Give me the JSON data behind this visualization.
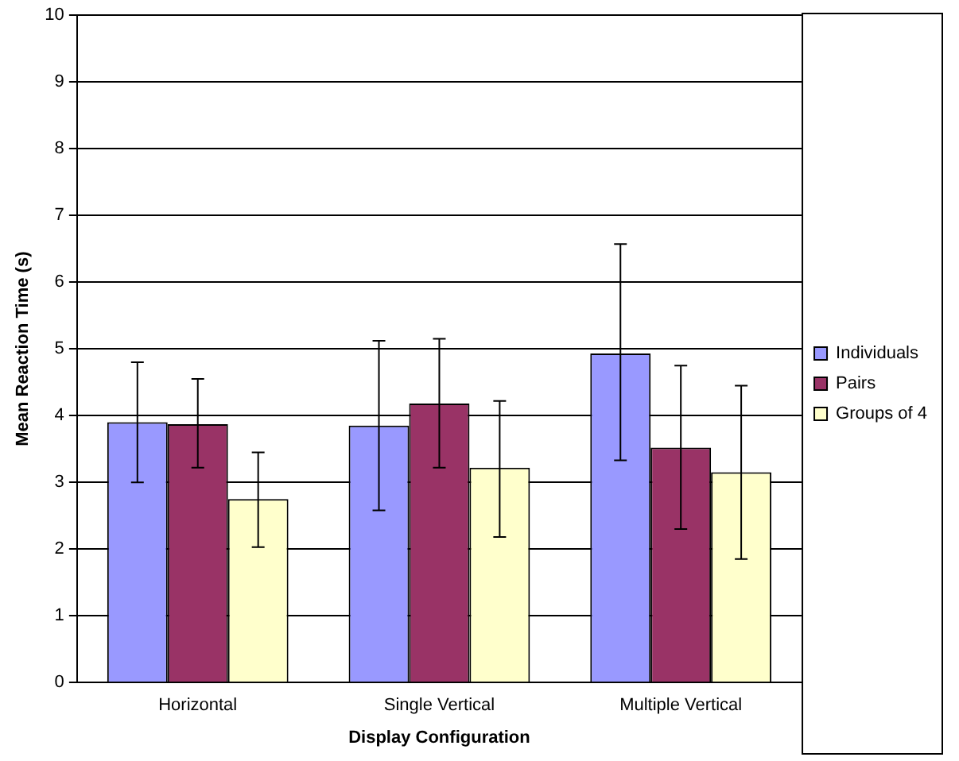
{
  "chart_data": {
    "type": "bar",
    "xlabel": "Display Configuration",
    "ylabel": "Mean Reaction Time (s)",
    "categories": [
      "Horizontal",
      "Single Vertical",
      "Multiple Vertical"
    ],
    "series": [
      {
        "name": "Individuals",
        "color": "#9999ff",
        "values": [
          3.9,
          3.85,
          4.93
        ],
        "errors": [
          [
            3.0,
            4.8
          ],
          [
            2.58,
            5.12
          ],
          [
            3.33,
            6.57
          ]
        ]
      },
      {
        "name": "Pairs",
        "color": "#993366",
        "values": [
          3.87,
          4.18,
          3.52
        ],
        "errors": [
          [
            3.22,
            4.55
          ],
          [
            3.22,
            5.15
          ],
          [
            2.3,
            4.75
          ]
        ]
      },
      {
        "name": "Groups of 4",
        "color": "#ffffcc",
        "values": [
          2.75,
          3.22,
          3.15
        ],
        "errors": [
          [
            2.03,
            3.45
          ],
          [
            2.18,
            4.22
          ],
          [
            1.85,
            4.45
          ]
        ]
      }
    ],
    "ylim": [
      0,
      10
    ],
    "yticks": [
      0,
      1,
      2,
      3,
      4,
      5,
      6,
      7,
      8,
      9,
      10
    ],
    "grid": "y",
    "legend": "right"
  }
}
